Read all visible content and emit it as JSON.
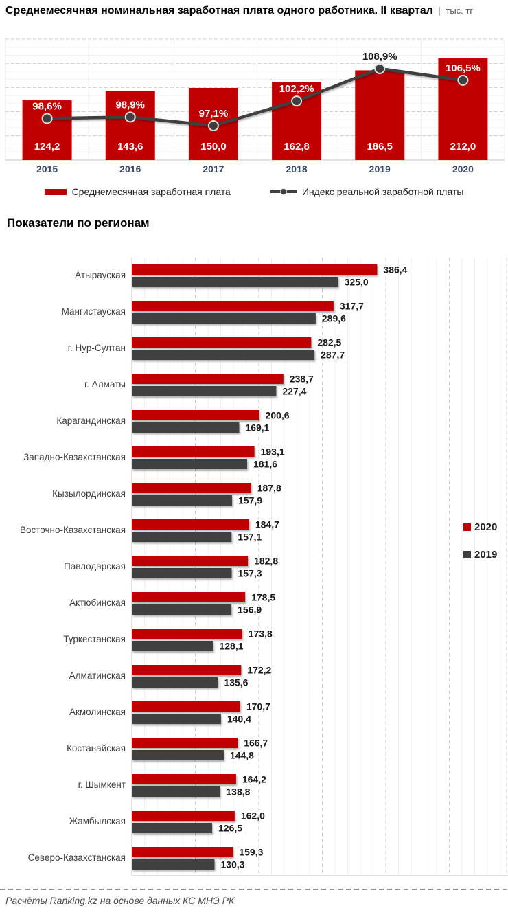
{
  "page": {
    "title_main": "Среднемесячная номинальная заработная плата одного работника. II квартал",
    "title_sep": "|",
    "title_unit": "тыс. тг",
    "footer": "Расчёты Ranking.kz на основе данных КС МНЭ РК"
  },
  "colors": {
    "bar_2020": "#C00000",
    "bar_2019": "#3F3F3F",
    "line": "#3F3F3F",
    "grid_minor": "#F0F0F0",
    "grid_major": "#CCCCCC",
    "axis": "#C6C6C6",
    "year_label": "#3A4A6B",
    "value_label": "#1A1A1A"
  },
  "chart_data": [
    {
      "id": "wage-trend",
      "type": "bar",
      "subtype": "bar+line combo",
      "title": "Среднемесячная номинальная заработная плата одного работника. II квартал",
      "unit": "тыс. тг",
      "categories": [
        "2015",
        "2016",
        "2017",
        "2018",
        "2019",
        "2020"
      ],
      "series": [
        {
          "name": "Среднемесячная заработная плата",
          "type": "bar",
          "color": "#C00000",
          "values": [
            124.2,
            143.6,
            150.0,
            162.8,
            186.5,
            212.0
          ]
        },
        {
          "name": "Индекс реальной заработной платы",
          "type": "line",
          "color": "#3F3F3F",
          "unit": "%",
          "values": [
            98.6,
            98.9,
            97.1,
            102.2,
            108.9,
            106.5
          ]
        }
      ],
      "bar_axis": {
        "min": 0,
        "max": 250
      },
      "line_axis": {
        "min": 90,
        "max": 115
      },
      "grid": true,
      "legend_position": "bottom"
    },
    {
      "id": "regions",
      "type": "bar",
      "subtype": "horizontal grouped",
      "title": "Показатели по регионам",
      "categories": [
        "Атырауская",
        "Мангистауская",
        "г. Нур-Султан",
        "г. Алматы",
        "Карагандинская",
        "Западно-Казахстанская",
        "Кызылординская",
        "Восточно-Казахстанская",
        "Павлодарская",
        "Актюбинская",
        "Туркестанская",
        "Алматинская",
        "Акмолинская",
        "Костанайская",
        "г. Шымкент",
        "Жамбылская",
        "Северо-Казахстанская"
      ],
      "series": [
        {
          "name": "2020",
          "color": "#C00000",
          "values": [
            386.4,
            317.7,
            282.5,
            238.7,
            200.6,
            193.1,
            187.8,
            184.7,
            182.8,
            178.5,
            173.8,
            172.2,
            170.7,
            166.7,
            164.2,
            162.0,
            159.3
          ]
        },
        {
          "name": "2019",
          "color": "#3F3F3F",
          "values": [
            325.0,
            289.6,
            287.7,
            227.4,
            169.1,
            181.6,
            157.9,
            157.1,
            157.3,
            156.9,
            128.1,
            135.6,
            140.4,
            144.8,
            138.8,
            126.5,
            130.3
          ]
        }
      ],
      "xlim": [
        0,
        600
      ],
      "grid": true,
      "legend_position": "right"
    }
  ]
}
